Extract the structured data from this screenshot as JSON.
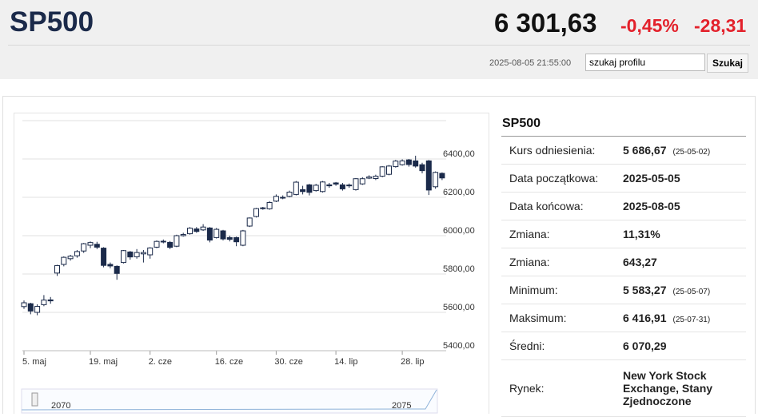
{
  "header": {
    "symbol": "SP500",
    "price": "6 301,63",
    "change_pct": "-0,45%",
    "change_abs": "-28,31",
    "timestamp": "2025-08-05 21:55:00",
    "search_placeholder": "szukaj profilu",
    "search_button": "Szukaj"
  },
  "chart_data": {
    "type": "candlestick",
    "categories": [
      "5. maj",
      null,
      null,
      null,
      null,
      null,
      null,
      null,
      null,
      null,
      "19. maj",
      null,
      null,
      null,
      null,
      null,
      null,
      null,
      null,
      "2. cze",
      null,
      null,
      null,
      null,
      null,
      null,
      null,
      null,
      null,
      "16. cze",
      null,
      null,
      null,
      null,
      null,
      null,
      null,
      null,
      "30. cze",
      null,
      null,
      null,
      null,
      null,
      null,
      null,
      null,
      "14. lip",
      null,
      null,
      null,
      null,
      null,
      null,
      null,
      null,
      null,
      "28. lip",
      null,
      null,
      null,
      null,
      null,
      null
    ],
    "open": [
      5630,
      5645,
      5600,
      5640,
      5665,
      5805,
      5850,
      5880,
      5895,
      5920,
      5950,
      5955,
      5935,
      5850,
      5840,
      5860,
      5915,
      5890,
      5905,
      5900,
      5940,
      5968,
      5965,
      5945,
      6000,
      6010,
      6035,
      6030,
      6040,
      5990,
      6025,
      5990,
      5990,
      5950,
      6050,
      6100,
      6145,
      6140,
      6180,
      6200,
      6205,
      6215,
      6240,
      6265,
      6235,
      6230,
      6265,
      6275,
      6265,
      6260,
      6240,
      6270,
      6300,
      6298,
      6310,
      6320,
      6360,
      6370,
      6395,
      6390,
      6370,
      6390,
      6255,
      6325
    ],
    "high": [
      5662,
      5650,
      5642,
      5690,
      5680,
      5848,
      5892,
      5900,
      5925,
      5962,
      5970,
      5968,
      5940,
      5860,
      5845,
      5925,
      5920,
      5930,
      5925,
      5940,
      5975,
      5980,
      5972,
      6005,
      6015,
      6045,
      6045,
      6060,
      6045,
      6040,
      6030,
      6000,
      5995,
      6030,
      6095,
      6145,
      6150,
      6180,
      6215,
      6210,
      6235,
      6285,
      6260,
      6270,
      6270,
      6285,
      6275,
      6280,
      6275,
      6272,
      6300,
      6305,
      6315,
      6318,
      6362,
      6368,
      6395,
      6398,
      6400,
      6417,
      6380,
      6395,
      6335,
      6330
    ],
    "low": [
      5618,
      5590,
      5585,
      5632,
      5645,
      5790,
      5840,
      5870,
      5885,
      5910,
      5935,
      5930,
      5835,
      5830,
      5770,
      5855,
      5875,
      5880,
      5860,
      5880,
      5935,
      5960,
      5930,
      5940,
      5995,
      6005,
      6015,
      6025,
      5965,
      5985,
      5975,
      5970,
      5945,
      5945,
      6045,
      6095,
      6135,
      6135,
      6175,
      6190,
      6200,
      6210,
      6215,
      6210,
      6230,
      6225,
      6250,
      6260,
      6235,
      6250,
      6235,
      6265,
      6295,
      6290,
      6305,
      6315,
      6355,
      6365,
      6360,
      6355,
      6325,
      6212,
      6245,
      6290
    ],
    "close": [
      5650,
      5607,
      5631,
      5664,
      5660,
      5844,
      5887,
      5893,
      5917,
      5958,
      5964,
      5940,
      5845,
      5842,
      5803,
      5922,
      5889,
      5912,
      5912,
      5936,
      5970,
      5971,
      5939,
      6000,
      6006,
      6039,
      6022,
      6045,
      5977,
      6033,
      5983,
      5981,
      5968,
      6025,
      6092,
      6141,
      6141,
      6173,
      6205,
      6198,
      6227,
      6279,
      6230,
      6226,
      6263,
      6280,
      6260,
      6269,
      6244,
      6264,
      6297,
      6297,
      6306,
      6310,
      6359,
      6363,
      6389,
      6390,
      6371,
      6363,
      6339,
      6238,
      6330,
      6301
    ],
    "up_color": "#ffffff",
    "down_color": "#1b2a4a",
    "ylim": [
      5400,
      6600
    ],
    "yticks": [
      {
        "value": 5400,
        "label": "5400,00"
      },
      {
        "value": 5600,
        "label": "5600,00"
      },
      {
        "value": 5800,
        "label": "5800,00"
      },
      {
        "value": 6000,
        "label": "6000,00"
      },
      {
        "value": 6200,
        "label": "6200,00"
      },
      {
        "value": 6400,
        "label": "6400,00"
      }
    ],
    "grid": true,
    "navigator_labels": [
      "2070",
      "2075"
    ]
  },
  "table": {
    "title": "SP500",
    "rows": [
      [
        "Kurs odniesienia:",
        "5 686,67",
        "(25-05-02)"
      ],
      [
        "Data początkowa:",
        "2025-05-05"
      ],
      [
        "Data końcowa:",
        "2025-08-05"
      ],
      [
        "Zmiana:",
        "11,31%"
      ],
      [
        "Zmiana:",
        "643,27"
      ],
      [
        "Minimum:",
        "5 583,27",
        "(25-05-07)"
      ],
      [
        "Maksimum:",
        "6 416,91",
        "(25-07-31)"
      ],
      [
        "Średni:",
        "6 070,29"
      ],
      [
        "Rynek:",
        "New York Stock Exchange, Stany Zjednoczone"
      ]
    ]
  }
}
